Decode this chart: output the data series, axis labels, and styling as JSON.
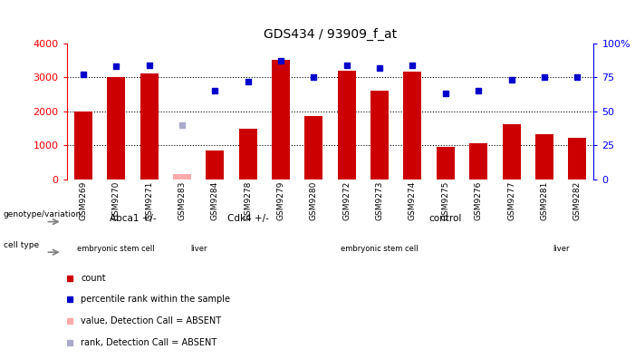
{
  "title": "GDS434 / 93909_f_at",
  "samples": [
    "GSM9269",
    "GSM9270",
    "GSM9271",
    "GSM9283",
    "GSM9284",
    "GSM9278",
    "GSM9279",
    "GSM9280",
    "GSM9272",
    "GSM9273",
    "GSM9274",
    "GSM9275",
    "GSM9276",
    "GSM9277",
    "GSM9281",
    "GSM9282"
  ],
  "counts": [
    2000,
    3000,
    3100,
    150,
    850,
    1500,
    3520,
    1870,
    3180,
    2600,
    3150,
    970,
    1050,
    1630,
    1330,
    1230
  ],
  "counts_absent": [
    false,
    false,
    false,
    true,
    false,
    false,
    false,
    false,
    false,
    false,
    false,
    false,
    false,
    false,
    false,
    false
  ],
  "percentile_ranks": [
    77,
    83,
    84,
    40,
    65,
    72,
    87,
    75,
    84,
    82,
    84,
    63,
    65,
    73,
    75,
    75
  ],
  "percentile_absent": [
    false,
    false,
    false,
    true,
    false,
    false,
    false,
    false,
    false,
    false,
    false,
    false,
    false,
    false,
    false,
    false
  ],
  "ylim_left": [
    0,
    4000
  ],
  "ylim_right": [
    0,
    100
  ],
  "yticks_left": [
    0,
    1000,
    2000,
    3000,
    4000
  ],
  "yticks_right": [
    0,
    25,
    50,
    75,
    100
  ],
  "bar_color": "#cc0000",
  "bar_absent_color": "#ffaaaa",
  "dot_color": "#0000cc",
  "dot_absent_color": "#aaaacc",
  "bg_color": "#ffffff",
  "genotype_groups": [
    {
      "label": "Abca1 +/-",
      "start": 0,
      "end": 4,
      "color": "#ccffcc"
    },
    {
      "label": "Cdk4 +/-",
      "start": 4,
      "end": 7,
      "color": "#aaffaa"
    },
    {
      "label": "control",
      "start": 7,
      "end": 16,
      "color": "#44ee44"
    }
  ],
  "celltype_groups": [
    {
      "label": "embryonic stem cell",
      "start": 0,
      "end": 3,
      "color": "#ee77ee"
    },
    {
      "label": "liver",
      "start": 3,
      "end": 5,
      "color": "#cc55ee"
    },
    {
      "label": "embryonic stem cell",
      "start": 5,
      "end": 14,
      "color": "#ee77ee"
    },
    {
      "label": "liver",
      "start": 14,
      "end": 16,
      "color": "#cc55ee"
    }
  ],
  "legend_items": [
    {
      "label": "count",
      "color": "#cc0000"
    },
    {
      "label": "percentile rank within the sample",
      "color": "#0000cc"
    },
    {
      "label": "value, Detection Call = ABSENT",
      "color": "#ffaaaa"
    },
    {
      "label": "rank, Detection Call = ABSENT",
      "color": "#aaaacc"
    }
  ]
}
